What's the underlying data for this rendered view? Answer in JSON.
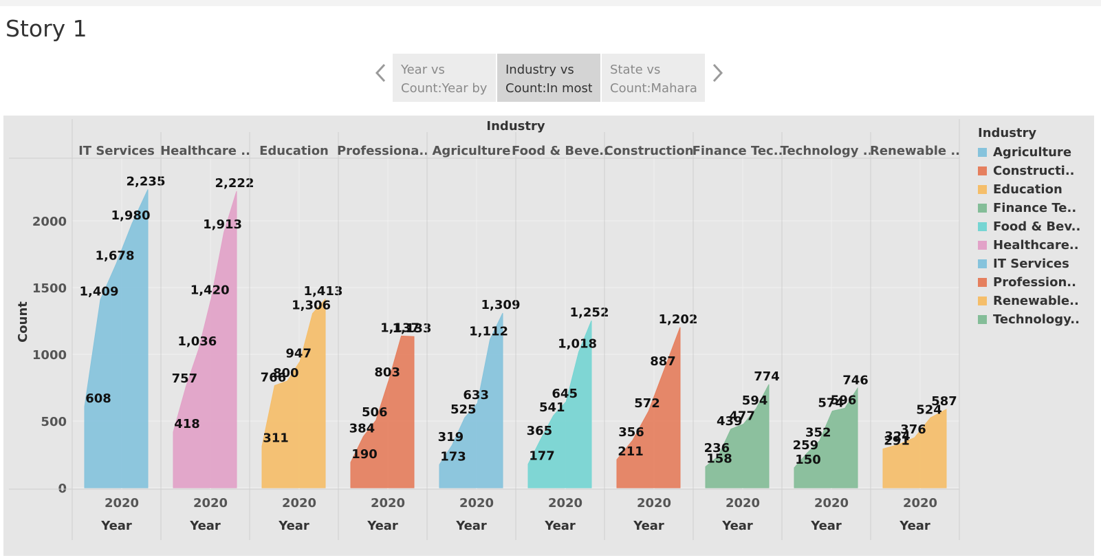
{
  "story": {
    "title": "Story 1",
    "points": [
      {
        "line1": "Year vs",
        "line2": "Count:Year by"
      },
      {
        "line1": "Industry vs",
        "line2": "Count:In most"
      },
      {
        "line1": "State vs",
        "line2": "Count:Mahara"
      }
    ],
    "active_point": 1
  },
  "legend": {
    "title": "Industry",
    "items": [
      {
        "label": "Agriculture",
        "color": "#86c3dc"
      },
      {
        "label": "Constructi..",
        "color": "#e57f5e"
      },
      {
        "label": "Education",
        "color": "#f5be6a"
      },
      {
        "label": "Finance Te..",
        "color": "#84bd98"
      },
      {
        "label": "Food & Bev..",
        "color": "#76d5d3"
      },
      {
        "label": "Healthcare..",
        "color": "#e2a2c8"
      },
      {
        "label": "IT Services",
        "color": "#86c3dc"
      },
      {
        "label": "Profession..",
        "color": "#e57f5e"
      },
      {
        "label": "Renewable..",
        "color": "#f5be6a"
      },
      {
        "label": "Technology..",
        "color": "#84bd98"
      }
    ]
  },
  "chart_data": {
    "type": "area",
    "title": "Industry",
    "ylabel": "Count",
    "xlabel": "Year",
    "x_tick_label": "2020",
    "yticks": [
      "0",
      "500",
      "1000",
      "1500",
      "2000"
    ],
    "ytick_values": [
      0,
      500,
      1000,
      1500,
      2000
    ],
    "ylim": [
      0,
      2440
    ],
    "grid": true,
    "legend_position": "right",
    "panels": [
      {
        "header": "IT Services",
        "color": "#86c3dc",
        "values": [
          608,
          1409,
          1678,
          1980,
          2235
        ],
        "labels": [
          "608",
          "1,409",
          "1,678",
          "1,980",
          "2,235"
        ]
      },
      {
        "header": "Healthcare ..",
        "color": "#e2a2c8",
        "values": [
          418,
          757,
          1036,
          1420,
          1913,
          2222
        ],
        "labels": [
          "418",
          "757",
          "1,036",
          "1,420",
          "1,913",
          "2,222"
        ]
      },
      {
        "header": "Education",
        "color": "#f5be6a",
        "values": [
          311,
          766,
          800,
          947,
          1306,
          1413
        ],
        "labels": [
          "311",
          "766",
          "800",
          "947",
          "1,306",
          "1,413"
        ]
      },
      {
        "header": "Professiona..",
        "color": "#e57f5e",
        "values": [
          190,
          384,
          506,
          803,
          1137,
          1133
        ],
        "labels": [
          "190",
          "384",
          "506",
          "803",
          "1,137",
          "1,133"
        ]
      },
      {
        "header": "Agriculture",
        "color": "#86c3dc",
        "values": [
          173,
          319,
          525,
          633,
          1112,
          1309
        ],
        "labels": [
          "173",
          "319",
          "525",
          "633",
          "1,112",
          "1,309"
        ]
      },
      {
        "header": "Food & Beve..",
        "color": "#76d5d3",
        "values": [
          177,
          365,
          541,
          645,
          1018,
          1252
        ],
        "labels": [
          "177",
          "365",
          "541",
          "645",
          "1,018",
          "1,252"
        ]
      },
      {
        "header": "Construction",
        "color": "#e57f5e",
        "values": [
          211,
          356,
          572,
          887,
          1202
        ],
        "labels": [
          "211",
          "356",
          "572",
          "887",
          "1,202"
        ]
      },
      {
        "header": "Finance Tec..",
        "color": "#84bd98",
        "values": [
          158,
          236,
          439,
          477,
          594,
          774
        ],
        "labels": [
          "158",
          "236",
          "439",
          "477",
          "594",
          "774"
        ]
      },
      {
        "header": "Technology ..",
        "color": "#84bd98",
        "values": [
          150,
          259,
          352,
          574,
          596,
          746
        ],
        "labels": [
          "150",
          "259",
          "352",
          "574",
          "596",
          "746"
        ]
      },
      {
        "header": "Renewable ..",
        "color": "#f5be6a",
        "values": [
          291,
          324,
          376,
          524,
          587
        ],
        "labels": [
          "291",
          "324",
          "376",
          "524",
          "587"
        ]
      }
    ]
  }
}
